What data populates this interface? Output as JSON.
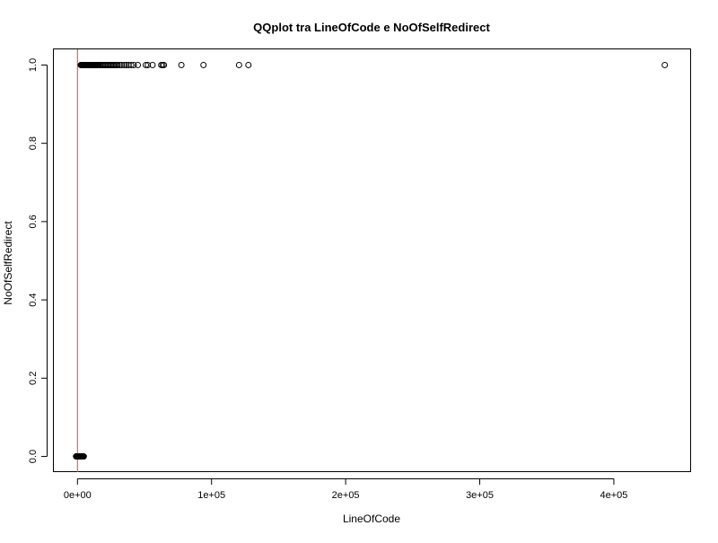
{
  "chart_data": {
    "type": "scatter",
    "title": "QQplot tra LineOfCode e NoOfSelfRedirect",
    "xlabel": "LineOfCode",
    "ylabel": "NoOfSelfRedirect",
    "xlim": [
      -17600,
      457600
    ],
    "ylim": [
      -0.04,
      1.04
    ],
    "grid": false,
    "x_ticks": [
      {
        "value": 0,
        "label": "0e+00"
      },
      {
        "value": 100000,
        "label": "1e+05"
      },
      {
        "value": 200000,
        "label": "2e+05"
      },
      {
        "value": 300000,
        "label": "3e+05"
      },
      {
        "value": 400000,
        "label": "4e+05"
      }
    ],
    "y_ticks": [
      {
        "value": 0.0,
        "label": "0.0"
      },
      {
        "value": 0.2,
        "label": "0.2"
      },
      {
        "value": 0.4,
        "label": "0.4"
      },
      {
        "value": 0.6,
        "label": "0.6"
      },
      {
        "value": 0.8,
        "label": "0.8"
      },
      {
        "value": 1.0,
        "label": "1.0"
      }
    ],
    "reference_line": {
      "x": 0,
      "color": "#e8413c"
    },
    "series": [
      {
        "marker": "open-circle",
        "color": "#000000",
        "points": [
          [
            -1000,
            0
          ],
          [
            -700,
            0
          ],
          [
            -400,
            0
          ],
          [
            -100,
            0
          ],
          [
            200,
            0
          ],
          [
            500,
            0
          ],
          [
            800,
            0
          ],
          [
            1100,
            0
          ],
          [
            1400,
            0
          ],
          [
            1700,
            0
          ],
          [
            2000,
            0
          ],
          [
            2300,
            0
          ],
          [
            2600,
            0
          ],
          [
            2900,
            0
          ],
          [
            3200,
            0
          ],
          [
            3500,
            0
          ],
          [
            3800,
            0
          ],
          [
            4100,
            0
          ],
          [
            4400,
            0
          ],
          [
            4700,
            0
          ],
          [
            2500,
            1
          ],
          [
            3000,
            1
          ],
          [
            3500,
            1
          ],
          [
            4000,
            1
          ],
          [
            4500,
            1
          ],
          [
            5000,
            1
          ],
          [
            5500,
            1
          ],
          [
            6000,
            1
          ],
          [
            6500,
            1
          ],
          [
            7000,
            1
          ],
          [
            7500,
            1
          ],
          [
            8000,
            1
          ],
          [
            8500,
            1
          ],
          [
            9000,
            1
          ],
          [
            9500,
            1
          ],
          [
            10000,
            1
          ],
          [
            10500,
            1
          ],
          [
            11000,
            1
          ],
          [
            11500,
            1
          ],
          [
            12000,
            1
          ],
          [
            12500,
            1
          ],
          [
            13000,
            1
          ],
          [
            13500,
            1
          ],
          [
            14000,
            1
          ],
          [
            14500,
            1
          ],
          [
            15000,
            1
          ],
          [
            15500,
            1
          ],
          [
            16000,
            1
          ],
          [
            17000,
            1
          ],
          [
            18000,
            1
          ],
          [
            19000,
            1
          ],
          [
            20000,
            1
          ],
          [
            21000,
            1
          ],
          [
            22000,
            1
          ],
          [
            23000,
            1
          ],
          [
            24000,
            1
          ],
          [
            25000,
            1
          ],
          [
            26000,
            1
          ],
          [
            27000,
            1
          ],
          [
            28000,
            1
          ],
          [
            29000,
            1
          ],
          [
            30000,
            1
          ],
          [
            31500,
            1
          ],
          [
            33000,
            1
          ],
          [
            35000,
            1
          ],
          [
            36500,
            1
          ],
          [
            38000,
            1
          ],
          [
            40000,
            1
          ],
          [
            42000,
            1
          ],
          [
            45000,
            1
          ],
          [
            51000,
            1
          ],
          [
            52500,
            1
          ],
          [
            56000,
            1
          ],
          [
            62500,
            1
          ],
          [
            63500,
            1
          ],
          [
            64500,
            1
          ],
          [
            77500,
            1
          ],
          [
            94000,
            1
          ],
          [
            120500,
            1
          ],
          [
            127500,
            1
          ],
          [
            438000,
            1
          ]
        ]
      }
    ]
  }
}
